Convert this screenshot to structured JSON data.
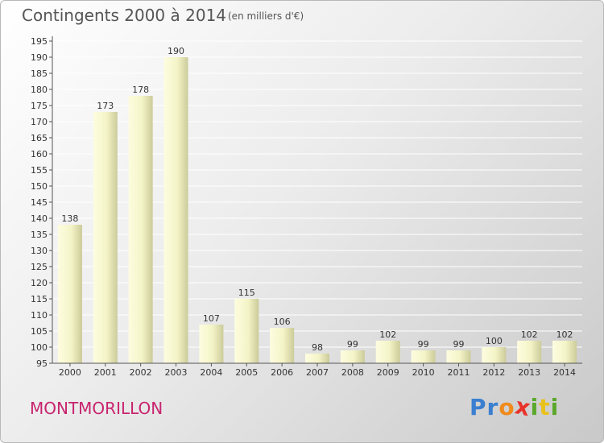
{
  "header": {
    "title": "Contingents 2000 à 2014",
    "unit": "(en milliers d'€)"
  },
  "footer": {
    "commune": "MONTMORILLON",
    "logo_letters": [
      "P",
      "r",
      "o",
      "x",
      "i",
      "t",
      "i"
    ]
  },
  "colors": {
    "bar_light": "#fdfde0",
    "bar_dark": "#cbcb9a",
    "commune_text": "#c8246e",
    "logo": [
      "#3a7fd0",
      "#3a7fd0",
      "#f08a1c",
      "#e8322a",
      "#5aa82a",
      "#e8c21a",
      "#5aa82a"
    ]
  },
  "chart_data": {
    "type": "bar",
    "title": "Contingents 2000 à 2014",
    "ylabel": "",
    "xlabel": "",
    "categories": [
      "2000",
      "2001",
      "2002",
      "2003",
      "2004",
      "2005",
      "2006",
      "2007",
      "2008",
      "2009",
      "2010",
      "2011",
      "2012",
      "2013",
      "2014"
    ],
    "values": [
      138,
      173,
      178,
      190,
      107,
      115,
      106,
      98,
      99,
      102,
      99,
      99,
      100,
      102,
      102
    ],
    "value_labels": [
      "138",
      "173",
      "178",
      "190",
      "107",
      "115",
      "106",
      "98",
      "99",
      "102",
      "99",
      "99",
      "100",
      "102",
      "102"
    ],
    "ylim": [
      95,
      195
    ],
    "yticks": [
      95,
      100,
      105,
      110,
      115,
      120,
      125,
      130,
      135,
      140,
      145,
      150,
      155,
      160,
      165,
      170,
      175,
      180,
      185,
      190,
      195
    ],
    "ytick_labels": [
      "95",
      "100",
      "105",
      "110",
      "115",
      "120",
      "125",
      "130",
      "135",
      "140",
      "145",
      "150",
      "155",
      "160",
      "165",
      "170",
      "175",
      "180",
      "185",
      "190",
      "195"
    ],
    "grid": true,
    "legend": "none"
  }
}
